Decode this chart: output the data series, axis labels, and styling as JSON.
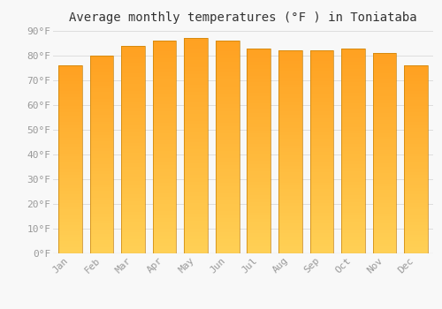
{
  "title": "Average monthly temperatures (°F ) in Toniataba",
  "months": [
    "Jan",
    "Feb",
    "Mar",
    "Apr",
    "May",
    "Jun",
    "Jul",
    "Aug",
    "Sep",
    "Oct",
    "Nov",
    "Dec"
  ],
  "values": [
    76,
    80,
    84,
    86,
    87,
    86,
    83,
    82,
    82,
    83,
    81,
    76
  ],
  "bar_color_bottom": "#FFD055",
  "bar_color_top": "#FFA020",
  "bar_edge_color": "#C8820A",
  "background_color": "#F8F8F8",
  "grid_color": "#DDDDDD",
  "ylim": [
    0,
    90
  ],
  "yticks": [
    0,
    10,
    20,
    30,
    40,
    50,
    60,
    70,
    80,
    90
  ],
  "ytick_labels": [
    "0°F",
    "10°F",
    "20°F",
    "30°F",
    "40°F",
    "50°F",
    "60°F",
    "70°F",
    "80°F",
    "90°F"
  ],
  "title_fontsize": 10,
  "tick_fontsize": 8,
  "tick_color": "#999999",
  "title_color": "#333333",
  "bar_width": 0.75
}
